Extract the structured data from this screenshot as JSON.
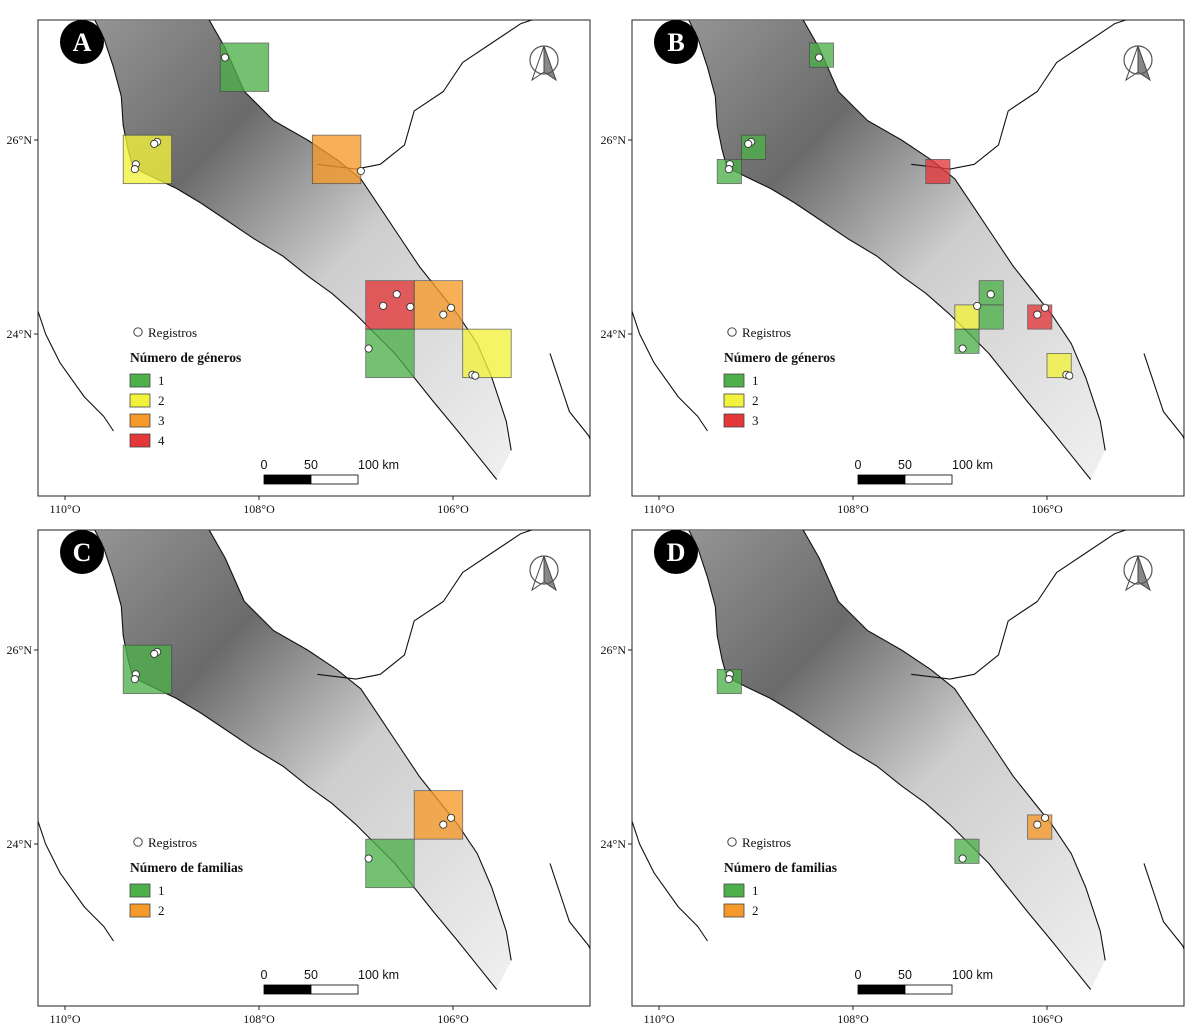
{
  "colors": {
    "green": "#4db04a",
    "yellow": "#f2f23c",
    "orange": "#f59a2a",
    "red": "#e3373a"
  },
  "axis": {
    "lon_ticks": [
      "110°O",
      "108°O",
      "106°O"
    ],
    "lat_ticks": [
      "26°N",
      "24°N"
    ]
  },
  "scalebar": {
    "labels": [
      "0",
      "50",
      "100 km"
    ]
  },
  "panels": [
    {
      "id": "A",
      "legend_record": "Registros",
      "legend_title": "Número de géneros",
      "legend_items": [
        {
          "label": "1",
          "color": "green"
        },
        {
          "label": "2",
          "color": "yellow"
        },
        {
          "label": "3",
          "color": "orange"
        },
        {
          "label": "4",
          "color": "red"
        }
      ],
      "cells": [
        {
          "lon": -108.4,
          "lat": 27.0,
          "size": 0.5,
          "value": 1
        },
        {
          "lon": -109.4,
          "lat": 26.05,
          "size": 0.5,
          "value": 2
        },
        {
          "lon": -107.45,
          "lat": 26.05,
          "size": 0.5,
          "value": 3
        },
        {
          "lon": -106.9,
          "lat": 24.55,
          "size": 0.5,
          "value": 4
        },
        {
          "lon": -106.4,
          "lat": 24.55,
          "size": 0.5,
          "value": 3
        },
        {
          "lon": -106.9,
          "lat": 24.05,
          "size": 0.5,
          "value": 1
        },
        {
          "lon": -105.9,
          "lat": 24.05,
          "size": 0.5,
          "value": 2
        }
      ]
    },
    {
      "id": "B",
      "legend_record": "Registros",
      "legend_title": "Número de géneros",
      "legend_items": [
        {
          "label": "1",
          "color": "green"
        },
        {
          "label": "2",
          "color": "yellow"
        },
        {
          "label": "3",
          "color": "red"
        }
      ],
      "cells": [
        {
          "lon": -108.45,
          "lat": 27.0,
          "size": 0.25,
          "value": 1
        },
        {
          "lon": -109.15,
          "lat": 26.05,
          "size": 0.25,
          "value": 1
        },
        {
          "lon": -109.4,
          "lat": 25.8,
          "size": 0.25,
          "value": 1
        },
        {
          "lon": -107.25,
          "lat": 25.8,
          "size": 0.25,
          "value": 3
        },
        {
          "lon": -106.7,
          "lat": 24.55,
          "size": 0.25,
          "value": 1
        },
        {
          "lon": -106.95,
          "lat": 24.3,
          "size": 0.25,
          "value": 2
        },
        {
          "lon": -106.7,
          "lat": 24.3,
          "size": 0.25,
          "value": 1
        },
        {
          "lon": -106.95,
          "lat": 24.05,
          "size": 0.25,
          "value": 1
        },
        {
          "lon": -106.2,
          "lat": 24.3,
          "size": 0.25,
          "value": 3
        },
        {
          "lon": -106.0,
          "lat": 23.8,
          "size": 0.25,
          "value": 2
        }
      ]
    },
    {
      "id": "C",
      "legend_record": "Registros",
      "legend_title": "Número de familias",
      "legend_items": [
        {
          "label": "1",
          "color": "green"
        },
        {
          "label": "2",
          "color": "orange"
        }
      ],
      "cells": [
        {
          "lon": -109.4,
          "lat": 26.05,
          "size": 0.5,
          "value": 1
        },
        {
          "lon": -106.4,
          "lat": 24.55,
          "size": 0.5,
          "value": 2
        },
        {
          "lon": -106.9,
          "lat": 24.05,
          "size": 0.5,
          "value": 1
        }
      ]
    },
    {
      "id": "D",
      "legend_record": "Registros",
      "legend_title": "Número de familias",
      "legend_items": [
        {
          "label": "1",
          "color": "green"
        },
        {
          "label": "2",
          "color": "orange"
        }
      ],
      "cells": [
        {
          "lon": -109.4,
          "lat": 25.8,
          "size": 0.25,
          "value": 1
        },
        {
          "lon": -106.95,
          "lat": 24.05,
          "size": 0.25,
          "value": 1
        },
        {
          "lon": -106.2,
          "lat": 24.3,
          "size": 0.25,
          "value": 2
        }
      ]
    }
  ],
  "records": [
    {
      "lon": -108.35,
      "lat": 26.85
    },
    {
      "lon": -109.05,
      "lat": 25.98
    },
    {
      "lon": -109.08,
      "lat": 25.96
    },
    {
      "lon": -109.27,
      "lat": 25.75
    },
    {
      "lon": -109.28,
      "lat": 25.7
    },
    {
      "lon": -106.95,
      "lat": 25.68
    },
    {
      "lon": -106.92,
      "lat": 25.68
    },
    {
      "lon": -106.88,
      "lat": 25.67
    },
    {
      "lon": -106.72,
      "lat": 24.29
    },
    {
      "lon": -106.58,
      "lat": 24.41
    },
    {
      "lon": -106.44,
      "lat": 24.28
    },
    {
      "lon": -106.02,
      "lat": 24.27
    },
    {
      "lon": -106.1,
      "lat": 24.2
    },
    {
      "lon": -106.87,
      "lat": 23.85
    },
    {
      "lon": -105.8,
      "lat": 23.58
    },
    {
      "lon": -105.77,
      "lat": 23.57
    }
  ]
}
